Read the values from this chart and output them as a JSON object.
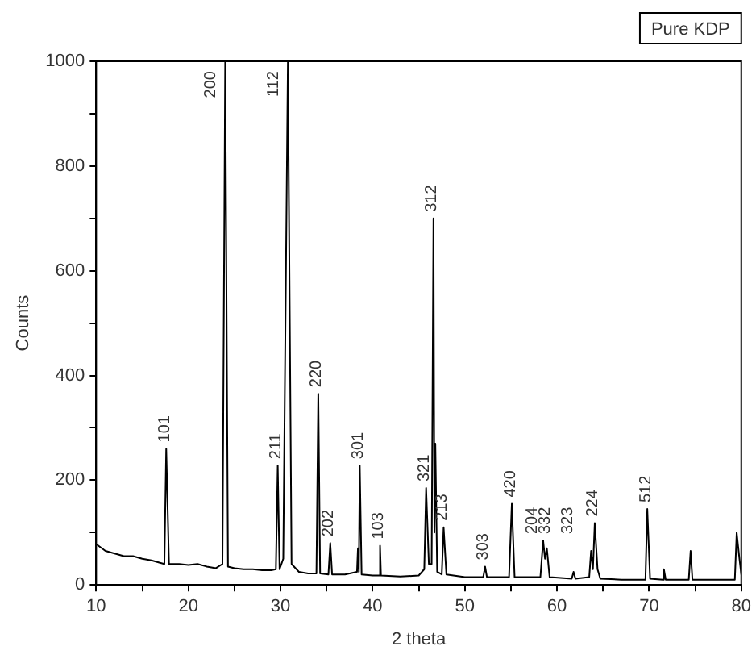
{
  "chart_data": {
    "type": "line",
    "xlabel": "2 theta",
    "ylabel": "Counts",
    "x": [
      10,
      11,
      12,
      13,
      14,
      15,
      16,
      17,
      17.4,
      17.6,
      17.9,
      19,
      20,
      21,
      22,
      23,
      23.7,
      24.0,
      24.3,
      25,
      26,
      27,
      28,
      29,
      29.5,
      29.7,
      29.9,
      30.3,
      30.8,
      31.2,
      32,
      33,
      33.9,
      34.1,
      34.3,
      35.2,
      35.4,
      35.6,
      37,
      38.3,
      38.4,
      38.5,
      38.6,
      38.8,
      40,
      40.7,
      40.8,
      40.9,
      43,
      45,
      45.6,
      45.8,
      46.1,
      46.4,
      46.6,
      46.7,
      46.8,
      47.0,
      47.5,
      47.7,
      48.0,
      50,
      52,
      52.2,
      52.4,
      54.8,
      55.1,
      55.4,
      58.2,
      58.5,
      58.7,
      58.9,
      59.2,
      61.6,
      61.8,
      62,
      63.5,
      63.7,
      63.9,
      64.1,
      64.4,
      64.7,
      67,
      69.6,
      69.8,
      70.1,
      71.5,
      71.6,
      71.8,
      74.3,
      74.5,
      74.7,
      77,
      79.3,
      79.5,
      79.8,
      80
    ],
    "series": [
      {
        "color": "#000000",
        "values": [
          78,
          65,
          60,
          55,
          55,
          50,
          47,
          42,
          40,
          260,
          40,
          40,
          38,
          40,
          35,
          32,
          40,
          1000,
          35,
          32,
          30,
          30,
          28,
          28,
          30,
          228,
          30,
          50,
          1000,
          40,
          25,
          22,
          22,
          365,
          22,
          20,
          80,
          20,
          20,
          25,
          70,
          25,
          228,
          20,
          18,
          18,
          75,
          18,
          16,
          18,
          30,
          185,
          40,
          40,
          700,
          100,
          270,
          25,
          20,
          110,
          20,
          15,
          15,
          35,
          15,
          15,
          155,
          15,
          15,
          85,
          50,
          70,
          15,
          12,
          25,
          12,
          15,
          65,
          30,
          118,
          30,
          12,
          10,
          10,
          145,
          12,
          10,
          30,
          10,
          10,
          65,
          10,
          10,
          10,
          100,
          50,
          20
        ]
      }
    ],
    "xlim": [
      10,
      80
    ],
    "ylim": [
      0,
      1000
    ],
    "xticks": [
      10,
      {
        "value": 15,
        "label": null
      },
      20,
      {
        "value": 25,
        "label": null
      },
      30,
      {
        "value": 35,
        "label": null
      },
      40,
      {
        "value": 45,
        "label": null
      },
      50,
      {
        "value": 55,
        "label": null
      },
      60,
      {
        "value": 65,
        "label": null
      },
      70,
      {
        "value": 75,
        "label": null
      },
      80
    ],
    "yticks": [
      0,
      {
        "value": 100,
        "label": null
      },
      200,
      {
        "value": 300,
        "label": null
      },
      400,
      {
        "value": 500,
        "label": null
      },
      600,
      {
        "value": 700,
        "label": null
      },
      800,
      {
        "value": 900,
        "label": null
      },
      1000
    ],
    "marker": "none",
    "legend": false,
    "grid": false,
    "annotations": [
      "Pure KDP",
      {
        "text": "101",
        "x": 17.6,
        "y": 260
      },
      {
        "text": "200",
        "x": 24.0,
        "y": 1000
      },
      {
        "text": "112",
        "x": 30.8,
        "y": 1000
      },
      {
        "text": "211",
        "x": 29.7,
        "y": 228
      },
      {
        "text": "220",
        "x": 34.1,
        "y": 365
      },
      {
        "text": "202",
        "x": 35.4,
        "y": 80
      },
      {
        "text": "301",
        "x": 38.6,
        "y": 228
      },
      {
        "text": "103",
        "x": 40.8,
        "y": 75
      },
      {
        "text": "321",
        "x": 45.8,
        "y": 185
      },
      {
        "text": "312",
        "x": 46.6,
        "y": 700
      },
      {
        "text": "213",
        "x": 47.7,
        "y": 110
      },
      {
        "text": "303",
        "x": 52.2,
        "y": 35
      },
      {
        "text": "420",
        "x": 55.1,
        "y": 155
      },
      {
        "text": "204",
        "x": 58.5,
        "y": 85
      },
      {
        "text": "332",
        "x": 58.9,
        "y": 70
      },
      {
        "text": "323",
        "x": 60.3,
        "y": 25
      },
      {
        "text": "224",
        "x": 64.1,
        "y": 118
      },
      {
        "text": "512",
        "x": 69.8,
        "y": 145
      }
    ]
  }
}
